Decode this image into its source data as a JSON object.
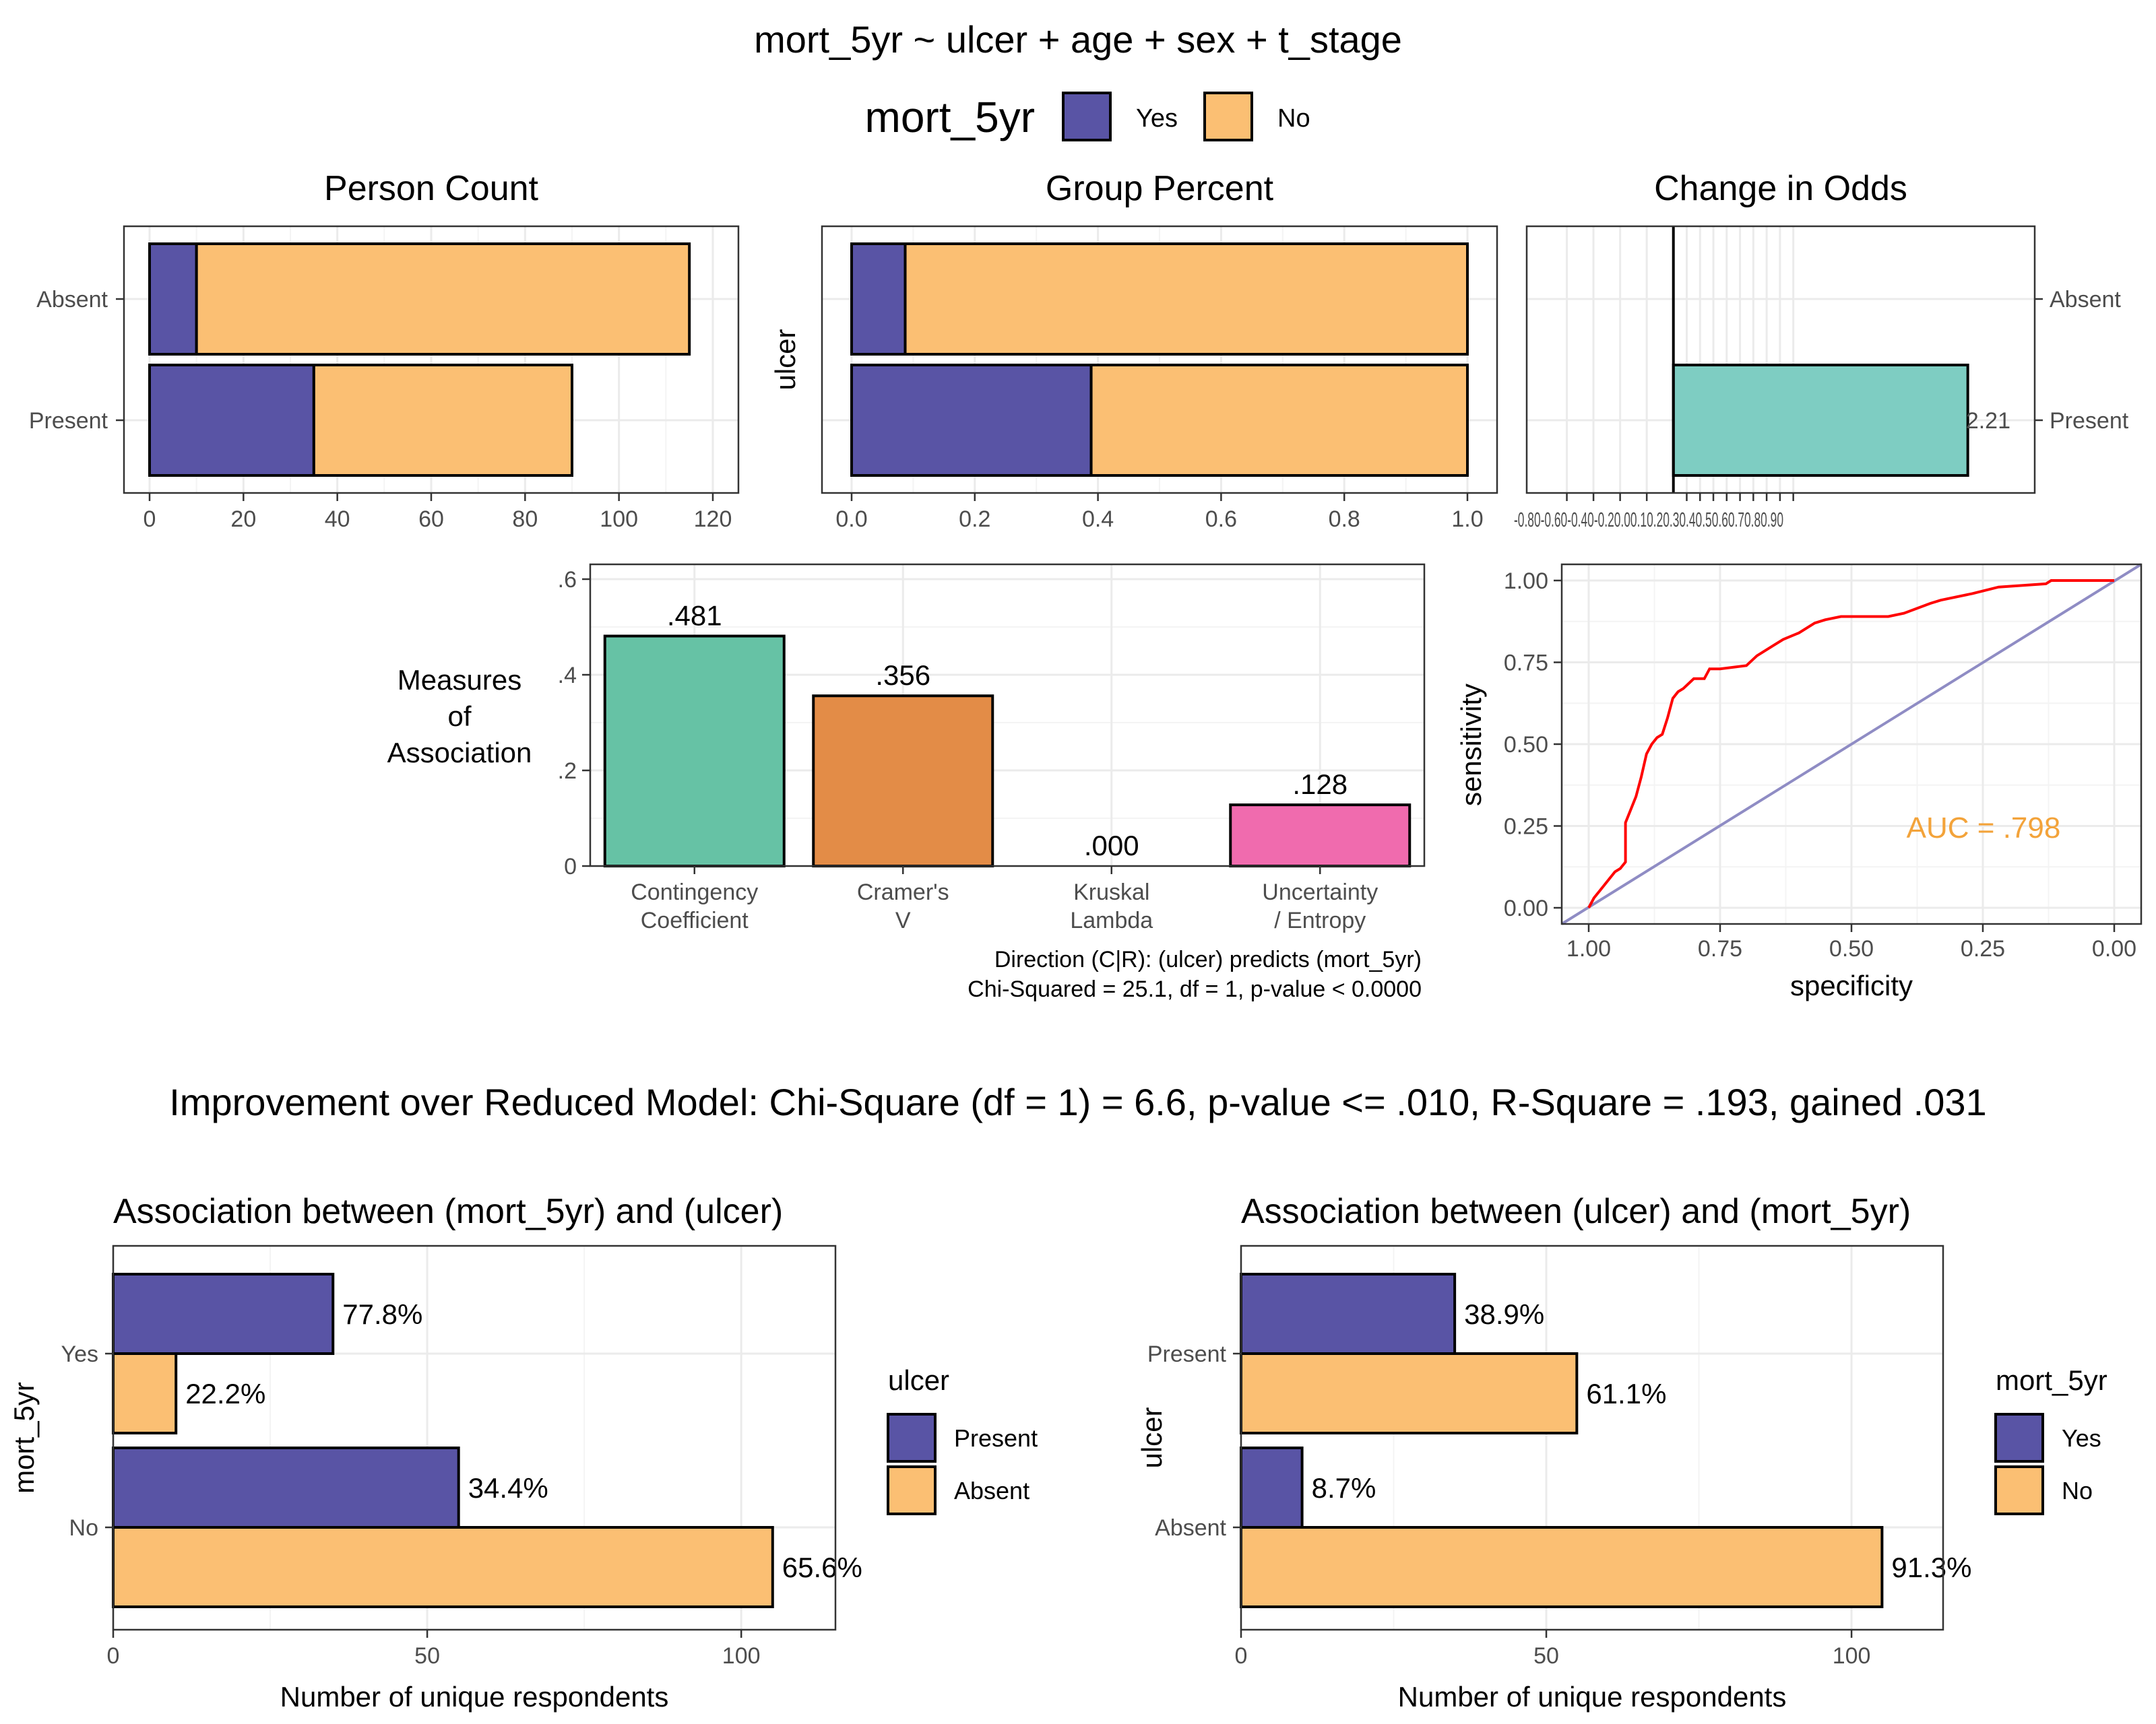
{
  "main_title": "mort_5yr ~ ulcer + age + sex + t_stage",
  "legend_top": {
    "title": "mort_5yr",
    "items": [
      {
        "label": "Yes",
        "color": "#5954A5"
      },
      {
        "label": "No",
        "color": "#FBBF73"
      }
    ]
  },
  "improvement_text": "Improvement over Reduced Model: Chi-Square (df = 1) = 6.6, p-value <= .010, R-Square  = .193, gained .031",
  "colors": {
    "yes": "#5954A5",
    "no": "#FBBF73",
    "odds": "#7ECDC2",
    "roc": "#FF0000",
    "diag": "#8F8CC4",
    "auc": "#F3A33A"
  },
  "chart_data": [
    {
      "id": "person_count",
      "type": "bar",
      "orientation": "horizontal",
      "stacked": true,
      "title": "Person Count",
      "categories": [
        "Absent",
        "Present"
      ],
      "series": [
        {
          "name": "Yes",
          "values": [
            10,
            35
          ]
        },
        {
          "name": "No",
          "values": [
            105,
            55
          ]
        }
      ],
      "xlim": [
        0,
        120
      ],
      "xticks": [
        0,
        20,
        40,
        60,
        80,
        100,
        120
      ]
    },
    {
      "id": "group_percent",
      "type": "bar",
      "orientation": "horizontal",
      "stacked": true,
      "title": "Group Percent",
      "ylabel": "ulcer",
      "categories": [
        "Absent",
        "Present"
      ],
      "series": [
        {
          "name": "Yes",
          "values": [
            0.087,
            0.389
          ]
        },
        {
          "name": "No",
          "values": [
            0.913,
            0.611
          ]
        }
      ],
      "xlim": [
        0,
        1
      ],
      "xticks": [
        "0.0",
        "0.2",
        "0.4",
        "0.6",
        "0.8",
        "1.0"
      ]
    },
    {
      "id": "change_in_odds",
      "type": "bar",
      "orientation": "horizontal",
      "title": "Change in Odds",
      "categories": [
        "Absent",
        "Present"
      ],
      "values": [
        null,
        2.21
      ],
      "data_labels": [
        "",
        "2.21"
      ],
      "tick_label_text": "-0.80-0.60-0.40-0.20.00.10.20.30.40.50.60.70.80.90",
      "xlim": [
        -1,
        2.5
      ]
    },
    {
      "id": "measures_of_association",
      "type": "bar",
      "ylabel_lines": [
        "Measures",
        "of",
        "Association"
      ],
      "categories": [
        [
          "Contingency",
          "Coefficient"
        ],
        [
          "Cramer's",
          "V"
        ],
        [
          "Kruskal",
          "Lambda"
        ],
        [
          "Uncertainty",
          "/ Entropy"
        ]
      ],
      "values": [
        0.481,
        0.356,
        0.0,
        0.128
      ],
      "data_labels": [
        ".481",
        ".356",
        ".000",
        ".128"
      ],
      "bar_colors": [
        "#66C2A5",
        "#E38C47",
        "#8DA0CB",
        "#F06BAE"
      ],
      "ylim": [
        0,
        0.6
      ],
      "yticks": [
        ".6",
        ".4",
        ".2",
        "0"
      ],
      "captions": [
        "Direction (C|R): (ulcer) predicts (mort_5yr)",
        "Chi-Squared = 25.1, df = 1, p-value < 0.0000"
      ]
    },
    {
      "id": "roc",
      "type": "line",
      "xlabel": "specificity",
      "ylabel": "sensitivity",
      "xlim": [
        1.0,
        0.0
      ],
      "ylim": [
        0,
        1
      ],
      "xticks": [
        "1.00",
        "0.75",
        "0.50",
        "0.25",
        "0.00"
      ],
      "yticks": [
        "0.00",
        "0.25",
        "0.50",
        "0.75",
        "1.00"
      ],
      "annotation": "AUC = .798",
      "series": [
        {
          "specificity": [
            1.0,
            0.99,
            0.98,
            0.97,
            0.96,
            0.95,
            0.94,
            0.93,
            0.93,
            0.92,
            0.91,
            0.9,
            0.89,
            0.88,
            0.87,
            0.86,
            0.85,
            0.84,
            0.83,
            0.82,
            0.8,
            0.78,
            0.77,
            0.75,
            0.7,
            0.68,
            0.65,
            0.63,
            0.6,
            0.57,
            0.55,
            0.52,
            0.5,
            0.47,
            0.43,
            0.4,
            0.35,
            0.33,
            0.27,
            0.22,
            0.13,
            0.12,
            0.0
          ],
          "sensitivity": [
            0.0,
            0.03,
            0.05,
            0.07,
            0.09,
            0.11,
            0.12,
            0.14,
            0.26,
            0.3,
            0.34,
            0.4,
            0.47,
            0.5,
            0.52,
            0.53,
            0.58,
            0.64,
            0.66,
            0.67,
            0.7,
            0.7,
            0.73,
            0.73,
            0.74,
            0.77,
            0.8,
            0.82,
            0.84,
            0.87,
            0.88,
            0.89,
            0.89,
            0.89,
            0.89,
            0.9,
            0.93,
            0.94,
            0.96,
            0.98,
            0.99,
            1.0,
            1.0
          ]
        }
      ]
    },
    {
      "id": "assoc_mort_ulcer",
      "type": "bar",
      "orientation": "horizontal",
      "title": "Association between (mort_5yr) and (ulcer)",
      "xlabel": "Number of unique respondents",
      "ylabel": "mort_5yr",
      "categories": [
        "Yes",
        "No"
      ],
      "legend": {
        "title": "ulcer",
        "items": [
          "Present",
          "Absent"
        ]
      },
      "series": [
        {
          "name": "Present",
          "values": [
            35,
            55
          ],
          "labels": [
            "77.8%",
            "34.4%"
          ]
        },
        {
          "name": "Absent",
          "values": [
            10,
            105
          ],
          "labels": [
            "22.2%",
            "65.6%"
          ]
        }
      ],
      "xlim": [
        0,
        115
      ],
      "xticks": [
        0,
        50,
        100
      ]
    },
    {
      "id": "assoc_ulcer_mort",
      "type": "bar",
      "orientation": "horizontal",
      "title": "Association between (ulcer) and (mort_5yr)",
      "xlabel": "Number of unique respondents",
      "ylabel": "ulcer",
      "categories": [
        "Present",
        "Absent"
      ],
      "legend": {
        "title": "mort_5yr",
        "items": [
          "Yes",
          "No"
        ]
      },
      "series": [
        {
          "name": "Yes",
          "values": [
            35,
            10
          ],
          "labels": [
            "38.9%",
            "8.7%"
          ]
        },
        {
          "name": "No",
          "values": [
            55,
            105
          ],
          "labels": [
            "61.1%",
            "91.3%"
          ]
        }
      ],
      "xlim": [
        0,
        115
      ],
      "xticks": [
        0,
        50,
        100
      ]
    }
  ]
}
